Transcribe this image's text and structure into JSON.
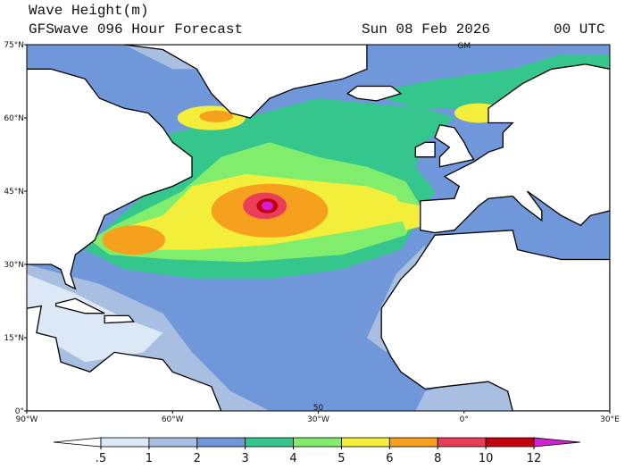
{
  "header": {
    "title": "Wave Height(m)",
    "subtitle": "GFSwave 096 Hour Forecast",
    "date": "Sun 08 Feb 2026",
    "time": "00 UTC"
  },
  "map": {
    "lat_labels": [
      "75°N",
      "60°N",
      "45°N",
      "30°N",
      "15°N",
      "0°"
    ],
    "lon_labels": [
      "90°W",
      "60°W",
      "30°W",
      "0°",
      "30°E"
    ],
    "annotations": [
      "GM",
      "50"
    ]
  },
  "colorbar": {
    "levels": [
      {
        "value": 0.5,
        "label": ".5"
      },
      1,
      2,
      3,
      4,
      5,
      6,
      8,
      10,
      12
    ],
    "colors": [
      "#ffffff",
      "#dce8f5",
      "#a9bfe2",
      "#6f97d9",
      "#34c68c",
      "#80ee6c",
      "#f2ee3a",
      "#f5a11e",
      "#e83e58",
      "#c4000e",
      "#d21fd2"
    ]
  }
}
